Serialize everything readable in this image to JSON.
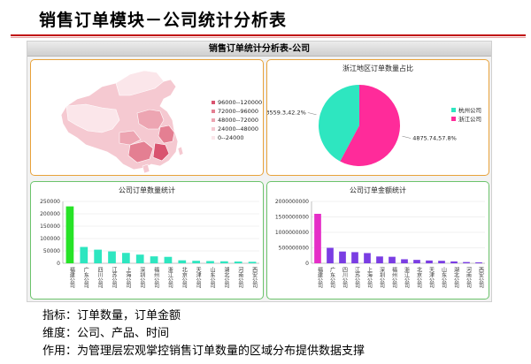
{
  "page": {
    "title": "销售订单模块－公司统计分析表",
    "dashboard_title": "销售订单统计分析表-公司",
    "info": [
      "指标：订单数量，订单金额",
      "维度：公司、产品、时间",
      "作用：为管理层宏观掌控销售订单数量的区域分布提供数据支撑"
    ]
  },
  "map_legend": {
    "items": [
      {
        "label": "96000--120000",
        "color": "#d9536f"
      },
      {
        "label": "72000--96000",
        "color": "#e47f92"
      },
      {
        "label": "48000--72000",
        "color": "#eda5b2"
      },
      {
        "label": "24000--48000",
        "color": "#f5c9d1"
      },
      {
        "label": "0--24000",
        "color": "#fbe6ea"
      }
    ]
  },
  "chart_data": [
    {
      "type": "pie",
      "title": "浙江地区订单数量占比",
      "slices": [
        {
          "name": "杭州公司",
          "value": 3559.3,
          "percent": 42.2,
          "label": "3559.3,42.2%",
          "color": "#2ee6c0"
        },
        {
          "name": "浙江公司",
          "value": 4875.74,
          "percent": 57.8,
          "label": "4875.74,57.8%",
          "color": "#ff2b9a"
        }
      ],
      "legend_position": "right"
    },
    {
      "type": "bar",
      "title": "公司订单数量统计",
      "categories": [
        "福建公司",
        "广东公司",
        "四川公司",
        "江苏公司",
        "上海公司",
        "深圳公司",
        "福州公司",
        "浙江公司",
        "北京公司",
        "天津公司",
        "山东公司",
        "湖北公司",
        "河南公司",
        "西安公司"
      ],
      "values": [
        230000,
        66000,
        55000,
        48000,
        42000,
        35000,
        28000,
        26000,
        12000,
        10000,
        9000,
        8000,
        7000,
        6000
      ],
      "ylim": [
        0,
        250000
      ],
      "yticks": [
        "0",
        "50000",
        "100000",
        "150000",
        "200000",
        "250000"
      ],
      "grid": true,
      "colors": {
        "first": "#27e327",
        "rest": "#2ee6c0"
      }
    },
    {
      "type": "bar",
      "title": "公司订单金额统计",
      "categories": [
        "福建公司",
        "广东公司",
        "四川公司",
        "江苏公司",
        "上海公司",
        "深圳公司",
        "福州公司",
        "浙江公司",
        "北京公司",
        "天津公司",
        "山东公司",
        "湖北公司",
        "河南公司",
        "西安公司"
      ],
      "values": [
        1600000000,
        500000000,
        380000000,
        360000000,
        330000000,
        220000000,
        210000000,
        130000000,
        110000000,
        90000000,
        80000000,
        60000000,
        40000000,
        30000000
      ],
      "ylim": [
        0,
        2000000000
      ],
      "yticks": [
        "0",
        "500000000",
        "1000000000",
        "1500000000",
        "2000000000"
      ],
      "grid": true,
      "colors": {
        "first": "#e52ec7",
        "rest": "#7a3de3"
      }
    }
  ]
}
